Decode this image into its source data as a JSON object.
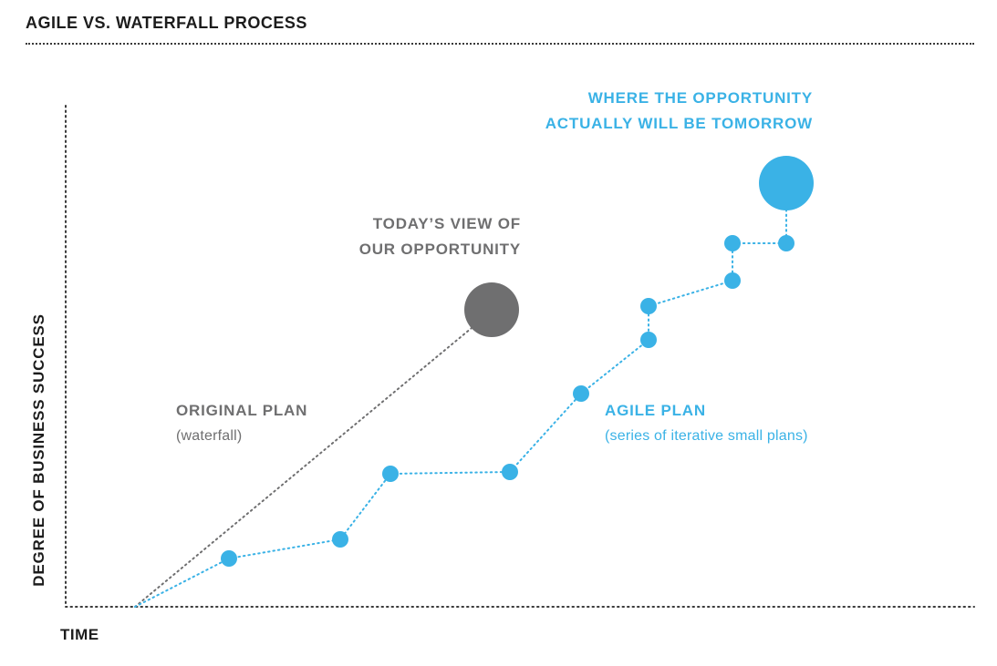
{
  "header": {
    "title": "AGILE VS. WATERFALL PROCESS"
  },
  "axes": {
    "x_label": "TIME",
    "y_label": "DEGREE OF BUSINESS SUCCESS"
  },
  "annotations": {
    "tomorrow_line1": "WHERE THE OPPORTUNITY",
    "tomorrow_line2": "ACTUALLY WILL BE TOMORROW",
    "today_line1": "TODAY’S VIEW OF",
    "today_line2": "OUR OPPORTUNITY",
    "original_plan": "ORIGINAL PLAN",
    "original_plan_sub": "(waterfall)",
    "agile_plan": "AGILE PLAN",
    "agile_plan_sub": "(series of iterative small plans)"
  },
  "colors": {
    "agile": "#3ab2e6",
    "waterfall": "#6f6f70",
    "axis": "#3a3a3a"
  }
}
